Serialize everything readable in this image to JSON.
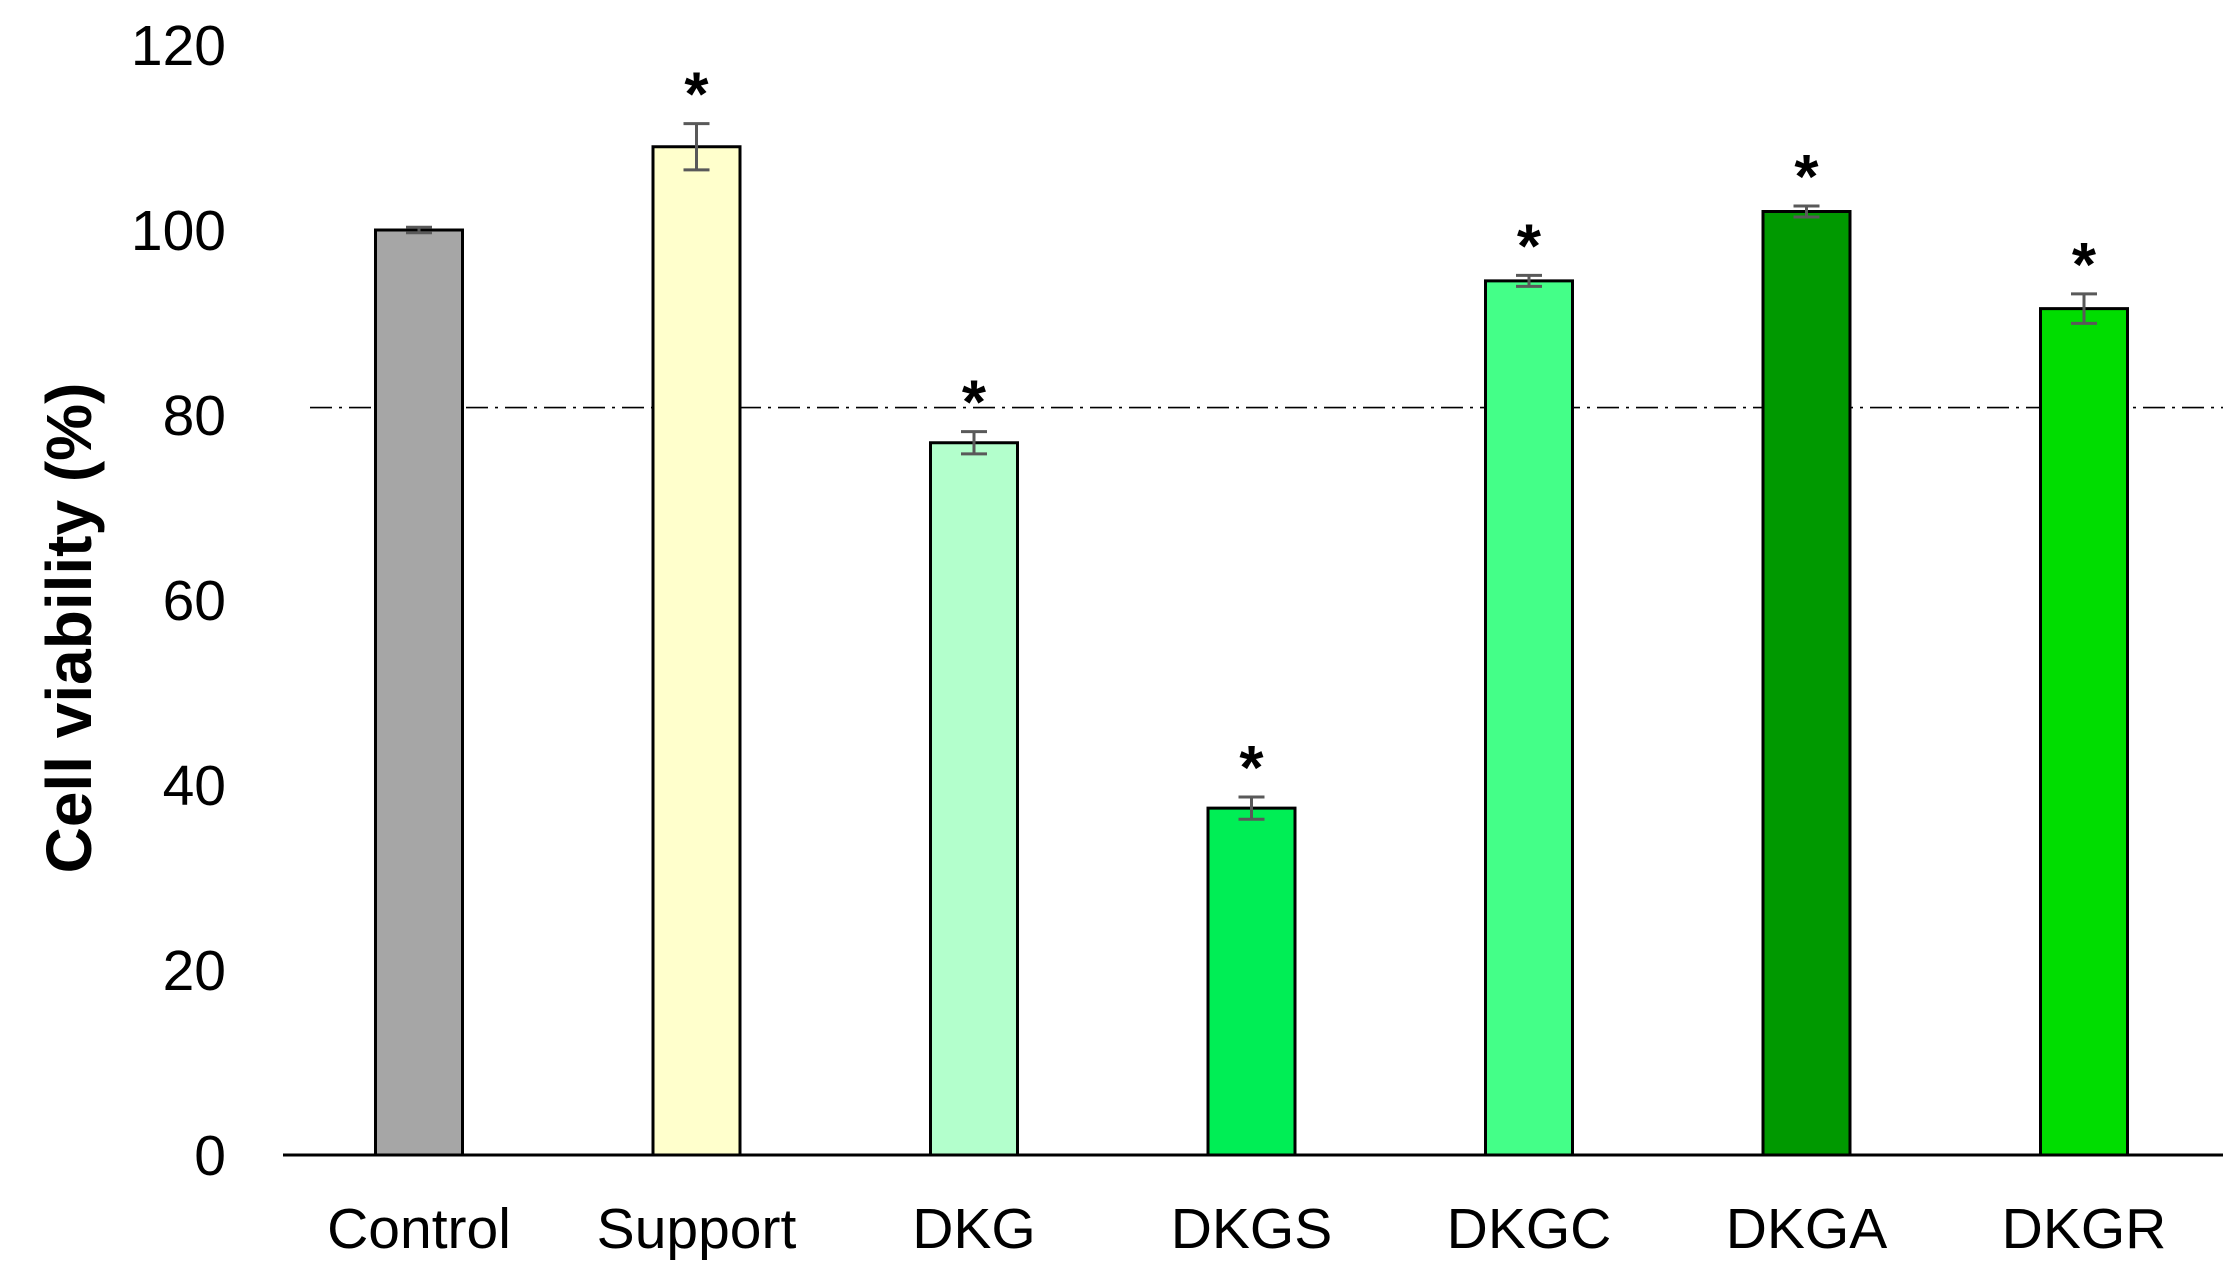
{
  "chart_data": {
    "type": "bar",
    "title": "",
    "xlabel": "",
    "ylabel": "Cell viability (%)",
    "ylim": [
      0,
      120
    ],
    "yticks": [
      0,
      20,
      40,
      60,
      80,
      100,
      120
    ],
    "ytick_labels": [
      "0",
      "20",
      "40",
      "60",
      "80",
      "100",
      "120"
    ],
    "grid": false,
    "categories": [
      "Control",
      "Support",
      "DKG",
      "DKGS",
      "DKGC",
      "DKGA",
      "DKGR"
    ],
    "values": [
      100,
      109,
      77,
      37.5,
      94.5,
      102,
      91.5
    ],
    "errors": [
      0.3,
      2.5,
      1.2,
      1.2,
      0.6,
      0.6,
      1.6
    ],
    "significance": [
      "",
      "*",
      "*",
      "*",
      "*",
      "*",
      "*"
    ],
    "colors": [
      "#a6a6a6",
      "#ffffcc",
      "#b3ffcc",
      "#00ee55",
      "#44ff88",
      "#009900",
      "#00dd00"
    ],
    "error_bar_color": "#595959",
    "reference_line": {
      "value": 80.8,
      "style": "dash-dot"
    }
  }
}
